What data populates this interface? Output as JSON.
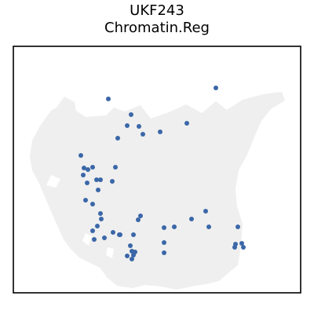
{
  "chart_data": {
    "type": "scatter",
    "title_lines": [
      "UKF243",
      "Chromatin.Reg"
    ],
    "xlabel": "",
    "ylabel": "",
    "grid": false,
    "xlim": [
      0,
      366
    ],
    "ylim": [
      0,
      314
    ],
    "x_ticks": [],
    "y_ticks": [],
    "tissue_color": "#efefef",
    "spot_color": "#3b67a8",
    "frame_color": "#000000",
    "tissue_outline": [
      [
        55,
        236
      ],
      [
        65,
        250
      ],
      [
        78,
        243
      ],
      [
        80,
        232
      ],
      [
        92,
        224
      ],
      [
        118,
        226
      ],
      [
        128,
        236
      ],
      [
        142,
        231
      ],
      [
        162,
        239
      ],
      [
        175,
        222
      ],
      [
        198,
        230
      ],
      [
        220,
        240
      ],
      [
        240,
        229
      ],
      [
        258,
        244
      ],
      [
        272,
        233
      ],
      [
        292,
        246
      ],
      [
        318,
        253
      ],
      [
        342,
        256
      ],
      [
        346,
        245
      ],
      [
        328,
        234
      ],
      [
        316,
        219
      ],
      [
        308,
        201
      ],
      [
        298,
        176
      ],
      [
        287,
        156
      ],
      [
        283,
        133
      ],
      [
        285,
        110
      ],
      [
        292,
        88
      ],
      [
        290,
        60
      ],
      [
        286,
        35
      ],
      [
        271,
        23
      ],
      [
        262,
        15
      ],
      [
        246,
        11
      ],
      [
        232,
        9
      ],
      [
        208,
        4
      ],
      [
        188,
        8
      ],
      [
        168,
        10
      ],
      [
        152,
        6
      ],
      [
        132,
        9
      ],
      [
        120,
        19
      ],
      [
        110,
        32
      ],
      [
        84,
        45
      ],
      [
        72,
        57
      ],
      [
        64,
        68
      ],
      [
        54,
        90
      ],
      [
        44,
        113
      ],
      [
        33,
        139
      ],
      [
        24,
        156
      ],
      [
        21,
        173
      ],
      [
        24,
        194
      ],
      [
        33,
        211
      ],
      [
        42,
        224
      ],
      [
        48,
        232
      ]
    ],
    "tissue_holes": [
      [
        [
          42,
          137
        ],
        [
          54,
          134
        ],
        [
          60,
          145
        ],
        [
          48,
          150
        ]
      ],
      [
        [
          88,
          66
        ],
        [
          96,
          60
        ],
        [
          100,
          72
        ],
        [
          92,
          76
        ]
      ],
      [
        [
          118,
          48
        ],
        [
          126,
          44
        ],
        [
          128,
          56
        ],
        [
          120,
          58
        ]
      ]
    ],
    "tissue_extra": [
      [
        118,
        20
      ],
      [
        126,
        17
      ],
      [
        130,
        24
      ],
      [
        122,
        28
      ]
    ],
    "spots": [
      [
        121,
        247
      ],
      [
        150,
        227
      ],
      [
        145,
        213
      ],
      [
        160,
        212
      ],
      [
        133,
        197
      ],
      [
        165,
        202
      ],
      [
        187,
        205
      ],
      [
        221,
        216
      ],
      [
        258,
        261
      ],
      [
        86,
        175
      ],
      [
        130,
        160
      ],
      [
        90,
        159
      ],
      [
        95,
        157
      ],
      [
        101,
        160
      ],
      [
        89,
        150
      ],
      [
        111,
        144
      ],
      [
        106,
        144
      ],
      [
        108,
        131
      ],
      [
        101,
        113
      ],
      [
        126,
        142
      ],
      [
        94,
        140
      ],
      [
        92,
        118
      ],
      [
        111,
        101
      ],
      [
        112,
        94
      ],
      [
        107,
        85
      ],
      [
        103,
        68
      ],
      [
        101,
        79
      ],
      [
        116,
        70
      ],
      [
        127,
        77
      ],
      [
        135,
        74
      ],
      [
        136,
        74
      ],
      [
        162,
        98
      ],
      [
        159,
        93
      ],
      [
        153,
        74
      ],
      [
        149,
        60
      ],
      [
        151,
        53
      ],
      [
        155,
        52
      ],
      [
        145,
        47
      ],
      [
        153,
        48
      ],
      [
        151,
        43
      ],
      [
        192,
        83
      ],
      [
        192,
        64
      ],
      [
        205,
        84
      ],
      [
        227,
        94
      ],
      [
        245,
        104
      ],
      [
        192,
        51
      ],
      [
        249,
        84
      ],
      [
        286,
        84
      ],
      [
        283,
        62
      ],
      [
        291,
        63
      ],
      [
        282,
        58
      ],
      [
        293,
        58
      ]
    ]
  }
}
